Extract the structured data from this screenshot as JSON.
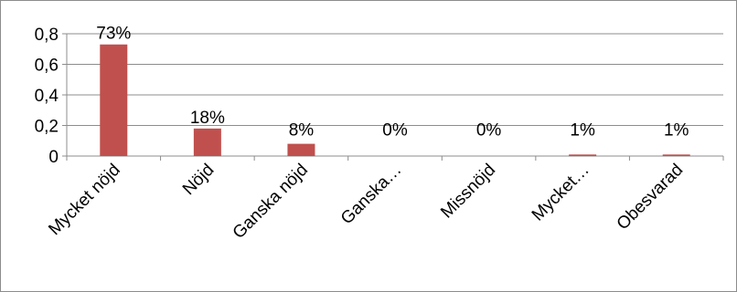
{
  "chart_data": {
    "type": "bar",
    "categories": [
      "Mycket nöjd",
      "Nöjd",
      "Ganska nöjd",
      "Ganska…",
      "Missnöjd",
      "Mycket…",
      "Obesvarad"
    ],
    "values": [
      0.73,
      0.18,
      0.08,
      0.0,
      0.0,
      0.01,
      0.01
    ],
    "data_labels": [
      "73%",
      "18%",
      "8%",
      "0%",
      "0%",
      "1%",
      "1%"
    ],
    "ylim": [
      0,
      0.8
    ],
    "yticks": [
      0,
      0.2,
      0.4,
      0.6,
      0.8
    ],
    "ytick_labels": [
      "0",
      "0,2",
      "0,4",
      "0,6",
      "0,8"
    ],
    "grid": true,
    "legend": "none",
    "colors": {
      "bar": "#c0504d",
      "grid": "#8c8c8c",
      "axis": "#8c8c8c"
    }
  }
}
